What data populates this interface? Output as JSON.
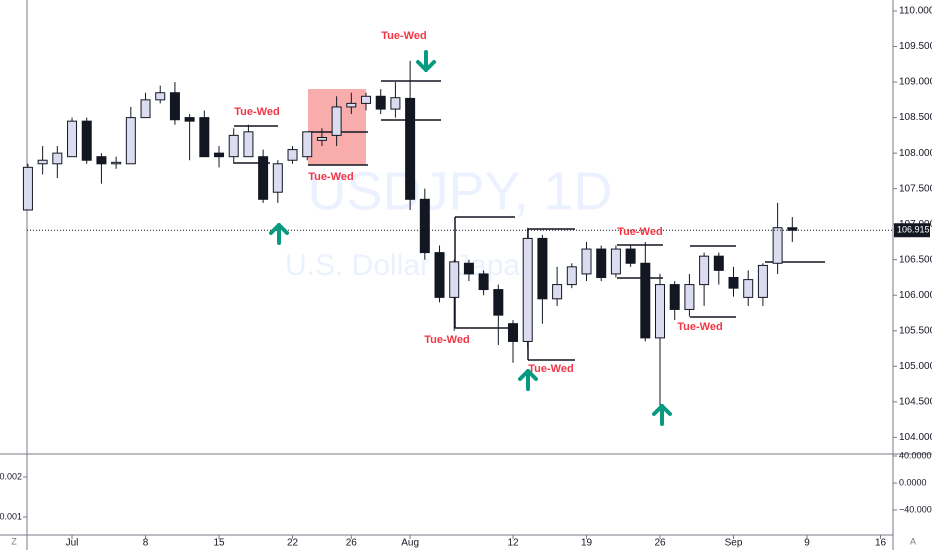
{
  "chart_data": [
    {
      "type": "candlestick",
      "watermark": "USDJPY, 1D",
      "watermark_subtitle": "U.S. Dollar / Japa",
      "up_color": "#dcdcf0",
      "down_color": "#131722",
      "open": [
        107.2,
        107.85,
        107.85,
        107.95,
        108.45,
        107.95,
        107.85,
        107.85,
        108.5,
        108.75,
        108.85,
        108.5,
        108.5,
        108.0,
        107.95,
        107.95,
        107.95,
        107.45,
        107.9,
        107.95,
        108.18,
        108.25,
        108.65,
        108.7,
        108.8,
        108.62,
        108.77,
        107.35,
        106.6,
        105.97,
        106.45,
        106.3,
        106.08,
        105.6,
        105.35,
        106.8,
        105.95,
        106.15,
        106.3,
        106.65,
        106.3,
        106.65,
        106.45,
        105.4,
        106.15,
        105.8,
        106.15,
        106.55,
        106.25,
        105.97,
        105.97,
        106.45,
        106.95
      ],
      "high": [
        107.85,
        108.1,
        108.1,
        108.5,
        108.5,
        108.0,
        107.95,
        108.65,
        108.85,
        108.95,
        109.0,
        108.55,
        108.6,
        108.1,
        108.35,
        108.4,
        108.05,
        107.9,
        108.1,
        108.3,
        108.35,
        108.8,
        108.85,
        108.85,
        108.9,
        109.0,
        109.3,
        107.5,
        106.7,
        106.5,
        106.5,
        106.35,
        106.15,
        105.65,
        106.95,
        106.85,
        106.4,
        106.45,
        106.75,
        106.7,
        106.7,
        106.7,
        106.75,
        106.3,
        106.2,
        106.3,
        106.6,
        106.6,
        106.4,
        106.35,
        106.45,
        107.3,
        107.1
      ],
      "low": [
        107.2,
        107.7,
        107.65,
        107.95,
        107.85,
        107.57,
        107.78,
        107.85,
        108.5,
        108.7,
        108.4,
        107.9,
        107.95,
        107.8,
        107.85,
        107.95,
        107.3,
        107.3,
        107.85,
        107.9,
        108.1,
        108.1,
        108.55,
        108.6,
        108.55,
        108.5,
        107.2,
        106.5,
        105.9,
        105.5,
        106.2,
        106.0,
        105.3,
        105.05,
        105.25,
        105.6,
        105.85,
        106.1,
        106.2,
        106.2,
        106.25,
        106.4,
        105.35,
        104.45,
        105.65,
        105.7,
        105.85,
        106.15,
        105.98,
        105.85,
        105.85,
        106.3,
        106.75
      ],
      "close": [
        107.8,
        107.9,
        108.0,
        108.45,
        107.9,
        107.85,
        107.87,
        108.5,
        108.75,
        108.85,
        108.47,
        108.45,
        107.95,
        107.95,
        108.25,
        108.3,
        107.35,
        107.85,
        108.05,
        108.3,
        108.22,
        108.65,
        108.7,
        108.8,
        108.62,
        108.78,
        107.35,
        106.6,
        105.97,
        106.47,
        106.3,
        106.08,
        105.72,
        105.35,
        106.8,
        105.95,
        106.15,
        106.4,
        106.65,
        106.25,
        106.65,
        106.45,
        105.4,
        106.15,
        105.8,
        106.15,
        106.55,
        106.35,
        106.1,
        106.22,
        106.42,
        106.95,
        106.915
      ],
      "ylim": [
        103.78,
        110.155
      ],
      "yticks": [
        {
          "value": 104,
          "label": "104.000"
        },
        {
          "value": 104.5,
          "label": "104.500"
        },
        {
          "value": 105,
          "label": "105.000"
        },
        {
          "value": 105.5,
          "label": "105.500"
        },
        {
          "value": 106,
          "label": "106.000"
        },
        {
          "value": 106.5,
          "label": "106.500"
        },
        {
          "value": 107,
          "label": "107.000"
        },
        {
          "value": 107.5,
          "label": "107.500"
        },
        {
          "value": 108,
          "label": "108.000"
        },
        {
          "value": 108.5,
          "label": "108.500"
        },
        {
          "value": 109,
          "label": "109.000"
        },
        {
          "value": 109.5,
          "label": "109.500"
        },
        {
          "value": 110,
          "label": "110.000"
        }
      ],
      "xlim": [
        -1.9,
        58.85
      ],
      "xticks": [
        {
          "value": 3,
          "label": "Jul"
        },
        {
          "value": 8,
          "label": "8"
        },
        {
          "value": 13,
          "label": "15"
        },
        {
          "value": 18,
          "label": "22"
        },
        {
          "value": 22,
          "label": "26"
        },
        {
          "value": 26,
          "label": "Aug"
        },
        {
          "value": 33,
          "label": "12"
        },
        {
          "value": 38,
          "label": "19"
        },
        {
          "value": 43,
          "label": "26"
        },
        {
          "value": 48,
          "label": "Sep"
        },
        {
          "value": 53,
          "label": "9"
        },
        {
          "value": 58,
          "label": "16"
        }
      ],
      "annotations": [
        "Tue-Wed",
        "Tue-Wed",
        "Tue-Wed",
        "Tue-Wed",
        "Tue-Wed",
        "Tue-Wed",
        "Tue-Wed"
      ]
    },
    {
      "type": "indicator",
      "ylim": [
        0.00055,
        0.00255
      ],
      "yticks": [
        0.001,
        0.002
      ],
      "y2lim": [
        -77,
        41.5
      ],
      "y2ticks": [
        {
          "value": 40,
          "label": "40.0000"
        },
        {
          "value": 0,
          "label": "0.0000"
        },
        {
          "value": -40,
          "label": "−40.0000"
        }
      ]
    }
  ],
  "ui": {
    "scale_left": "Z",
    "scale_right": "A"
  }
}
